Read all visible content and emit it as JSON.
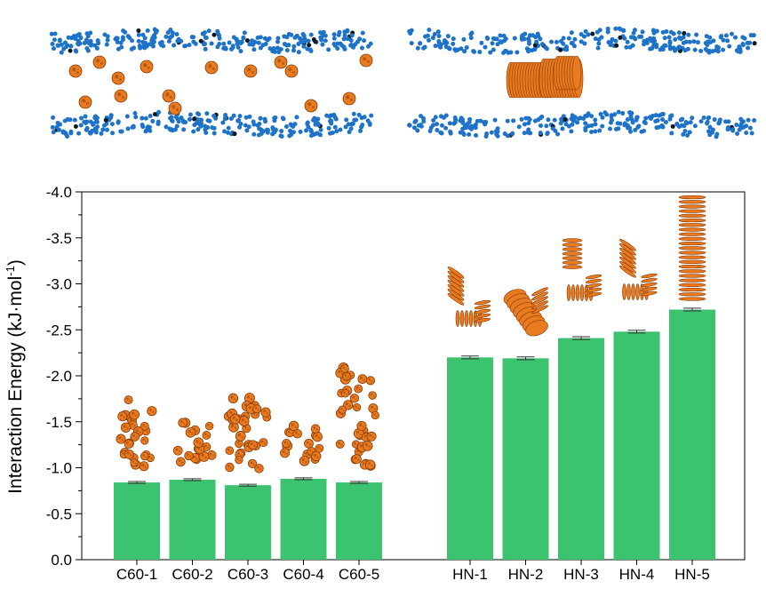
{
  "colors": {
    "bar": "#3cc370",
    "error_bar": "#333333",
    "membrane_bead": "#1e73c8",
    "membrane_bead_dark": "#101820",
    "fullerene": "#e87a1f",
    "fullerene_dark": "#8a3a05",
    "axis": "#000000"
  },
  "panels": [
    {
      "name": "c60-membrane-snapshot",
      "cluster": "dispersed-spheres"
    },
    {
      "name": "nanotube-membrane-snapshot",
      "cluster": "stacked-tubes"
    }
  ],
  "chart_data": {
    "type": "bar",
    "title": "",
    "xlabel": "",
    "ylabel": "Interaction Energy (kJ·mol",
    "ylabel_superscript": "-1",
    "ylabel_close": ")",
    "ylim": [
      0.0,
      -4.0
    ],
    "y_inverted": true,
    "yticks": [
      0.0,
      -0.5,
      -1.0,
      -1.5,
      -2.0,
      -2.5,
      -3.0,
      -3.5,
      -4.0
    ],
    "ytick_labels": [
      "0.0",
      "-0.5",
      "-1.0",
      "-1.5",
      "-2.0",
      "-2.5",
      "-3.0",
      "-3.5",
      "-4.0"
    ],
    "grid": false,
    "groups": [
      {
        "categories": [
          "C60-1",
          "C60-2",
          "C60-3",
          "C60-4",
          "C60-5"
        ],
        "values": [
          -0.84,
          -0.87,
          -0.81,
          -0.88,
          -0.84
        ],
        "errors": [
          0.01,
          0.01,
          0.01,
          0.01,
          0.01
        ],
        "inset": "fullerene-aggregate"
      },
      {
        "categories": [
          "HN-1",
          "HN-2",
          "HN-3",
          "HN-4",
          "HN-5"
        ],
        "values": [
          -2.2,
          -2.19,
          -2.41,
          -2.48,
          -2.72
        ],
        "errors": [
          0.015,
          0.015,
          0.015,
          0.015,
          0.015
        ],
        "inset": "nanotube-assembly"
      }
    ]
  }
}
